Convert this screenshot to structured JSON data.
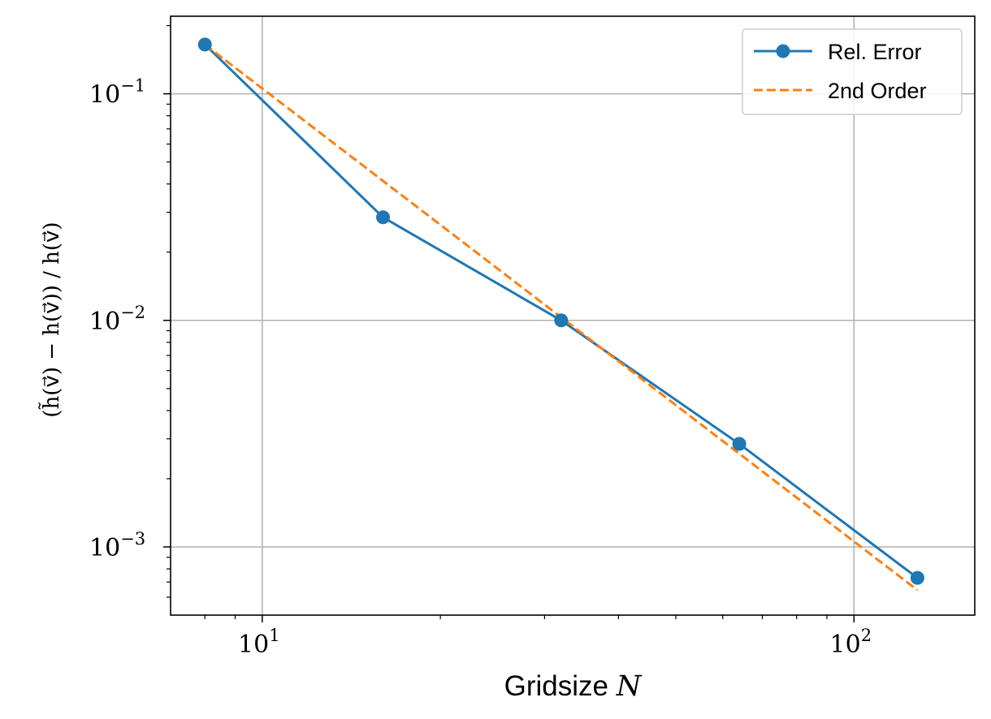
{
  "chart_data": {
    "type": "line",
    "x_scale": "log",
    "y_scale": "log",
    "xlim": [
      7,
      160
    ],
    "ylim": [
      0.0005,
      0.22
    ],
    "grid": true,
    "legend_position": "top-right",
    "xlabel": "Gridsize N",
    "xlabel_parts": [
      "Gridsize ",
      "N"
    ],
    "ylabel": "(h̃(v⃗) − h(v⃗)) / h(v⃗)",
    "x_major_ticks": [
      10,
      100
    ],
    "x_tick_labels": [
      {
        "base": "10",
        "exp": "1"
      },
      {
        "base": "10",
        "exp": "2"
      }
    ],
    "y_major_ticks": [
      0.1,
      0.01,
      0.001
    ],
    "y_tick_labels": [
      {
        "base": "10",
        "exp": "−1"
      },
      {
        "base": "10",
        "exp": "−2"
      },
      {
        "base": "10",
        "exp": "−3"
      }
    ],
    "series": [
      {
        "name": "Rel. Error",
        "color": "#1f77b4",
        "style": "solid",
        "marker": "circle",
        "x": [
          8,
          16,
          32,
          64,
          128
        ],
        "y": [
          0.165,
          0.0285,
          0.01,
          0.00285,
          0.00073
        ]
      },
      {
        "name": "2nd Order",
        "color": "#ff7f0e",
        "style": "dashed",
        "marker": "none",
        "x": [
          8,
          128
        ],
        "y": [
          0.165,
          0.000645
        ]
      }
    ]
  }
}
